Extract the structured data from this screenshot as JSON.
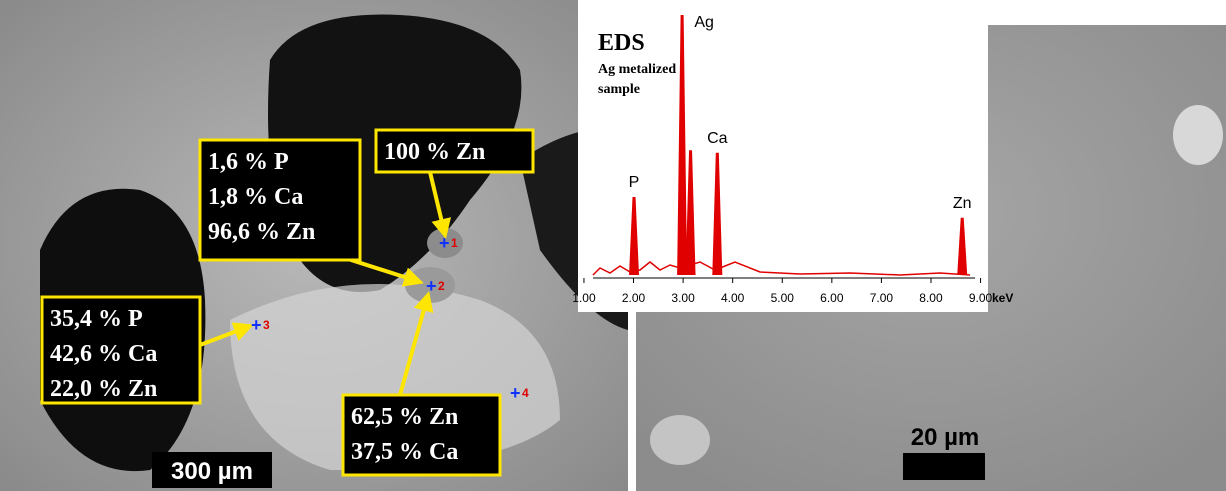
{
  "left_panel": {
    "callouts": [
      {
        "lines": [
          "1,6 % P",
          "1,8 % Ca",
          "96,6 % Zn"
        ]
      },
      {
        "lines": [
          "100 % Zn"
        ]
      },
      {
        "lines": [
          "35,4 % P",
          "42,6 % Ca",
          "22,0 % Zn"
        ]
      },
      {
        "lines": [
          "62,5 % Zn",
          "37,5 % Ca"
        ]
      }
    ],
    "markers": [
      "1",
      "2",
      "3",
      "4"
    ],
    "scale_bar": "300 µm"
  },
  "spectrum": {
    "title": "EDS",
    "subtitle_lines": [
      "Ag metalized",
      "sample"
    ],
    "xlim": [
      0.88,
      9.15
    ],
    "xticks": [
      {
        "value": 1,
        "label": "1.00"
      },
      {
        "value": 2,
        "label": "2.00"
      },
      {
        "value": 3,
        "label": "3.00"
      },
      {
        "value": 4,
        "label": "4.00"
      },
      {
        "value": 5,
        "label": "5.00"
      },
      {
        "value": 6,
        "label": "6.00"
      },
      {
        "value": 7,
        "label": "7.00"
      },
      {
        "value": 8,
        "label": "8.00"
      },
      {
        "value": 9,
        "label": "9.00"
      }
    ],
    "x_unit": "keV",
    "peaks": [
      {
        "label": "P",
        "x": 2.01,
        "height": 0.3
      },
      {
        "label": "Ag",
        "x": 2.98,
        "height": 1
      },
      {
        "label": null,
        "x": 3.15,
        "height": 0.48
      },
      {
        "label": "Ca",
        "x": 3.69,
        "height": 0.47
      },
      {
        "label": "Zn",
        "x": 8.63,
        "height": 0.22
      }
    ]
  },
  "right_panel": {
    "scale_bar": "20 µm"
  }
}
